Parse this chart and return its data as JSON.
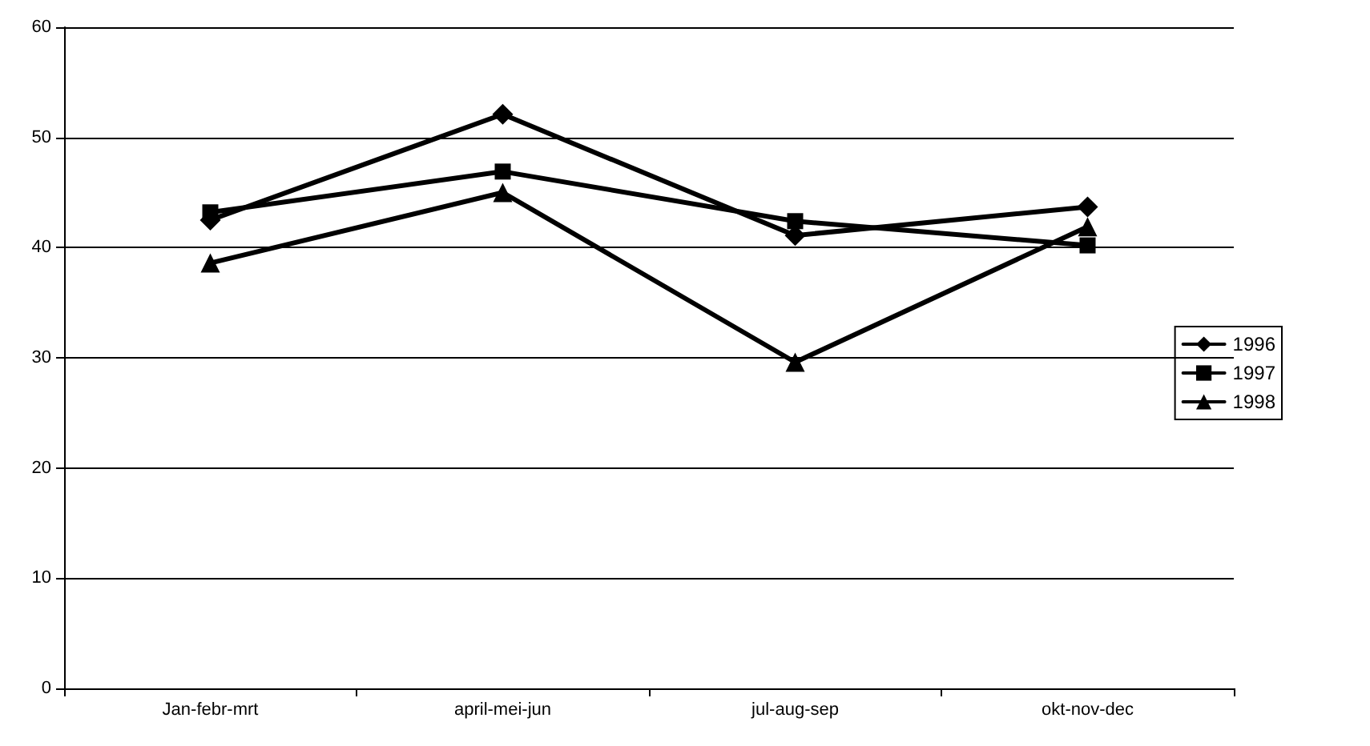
{
  "chart_data": {
    "type": "line",
    "categories": [
      "Jan-febr-mrt",
      "april-mei-jun",
      "jul-aug-sep",
      "okt-nov-dec"
    ],
    "series": [
      {
        "name": "1996",
        "color": "#000000",
        "marker": "diamond",
        "values": [
          42.5,
          52.1,
          41.1,
          43.7
        ]
      },
      {
        "name": "1997",
        "color": "#000000",
        "marker": "square",
        "values": [
          43.2,
          46.9,
          42.4,
          40.2
        ]
      },
      {
        "name": "1998",
        "color": "#000000",
        "marker": "triangle",
        "values": [
          38.6,
          45.0,
          29.6,
          41.9
        ]
      }
    ],
    "ylim": [
      0,
      60
    ],
    "yticks": [
      0,
      10,
      20,
      30,
      40,
      50,
      60
    ],
    "grid": "y",
    "legend": "right",
    "line_style": "solid"
  }
}
